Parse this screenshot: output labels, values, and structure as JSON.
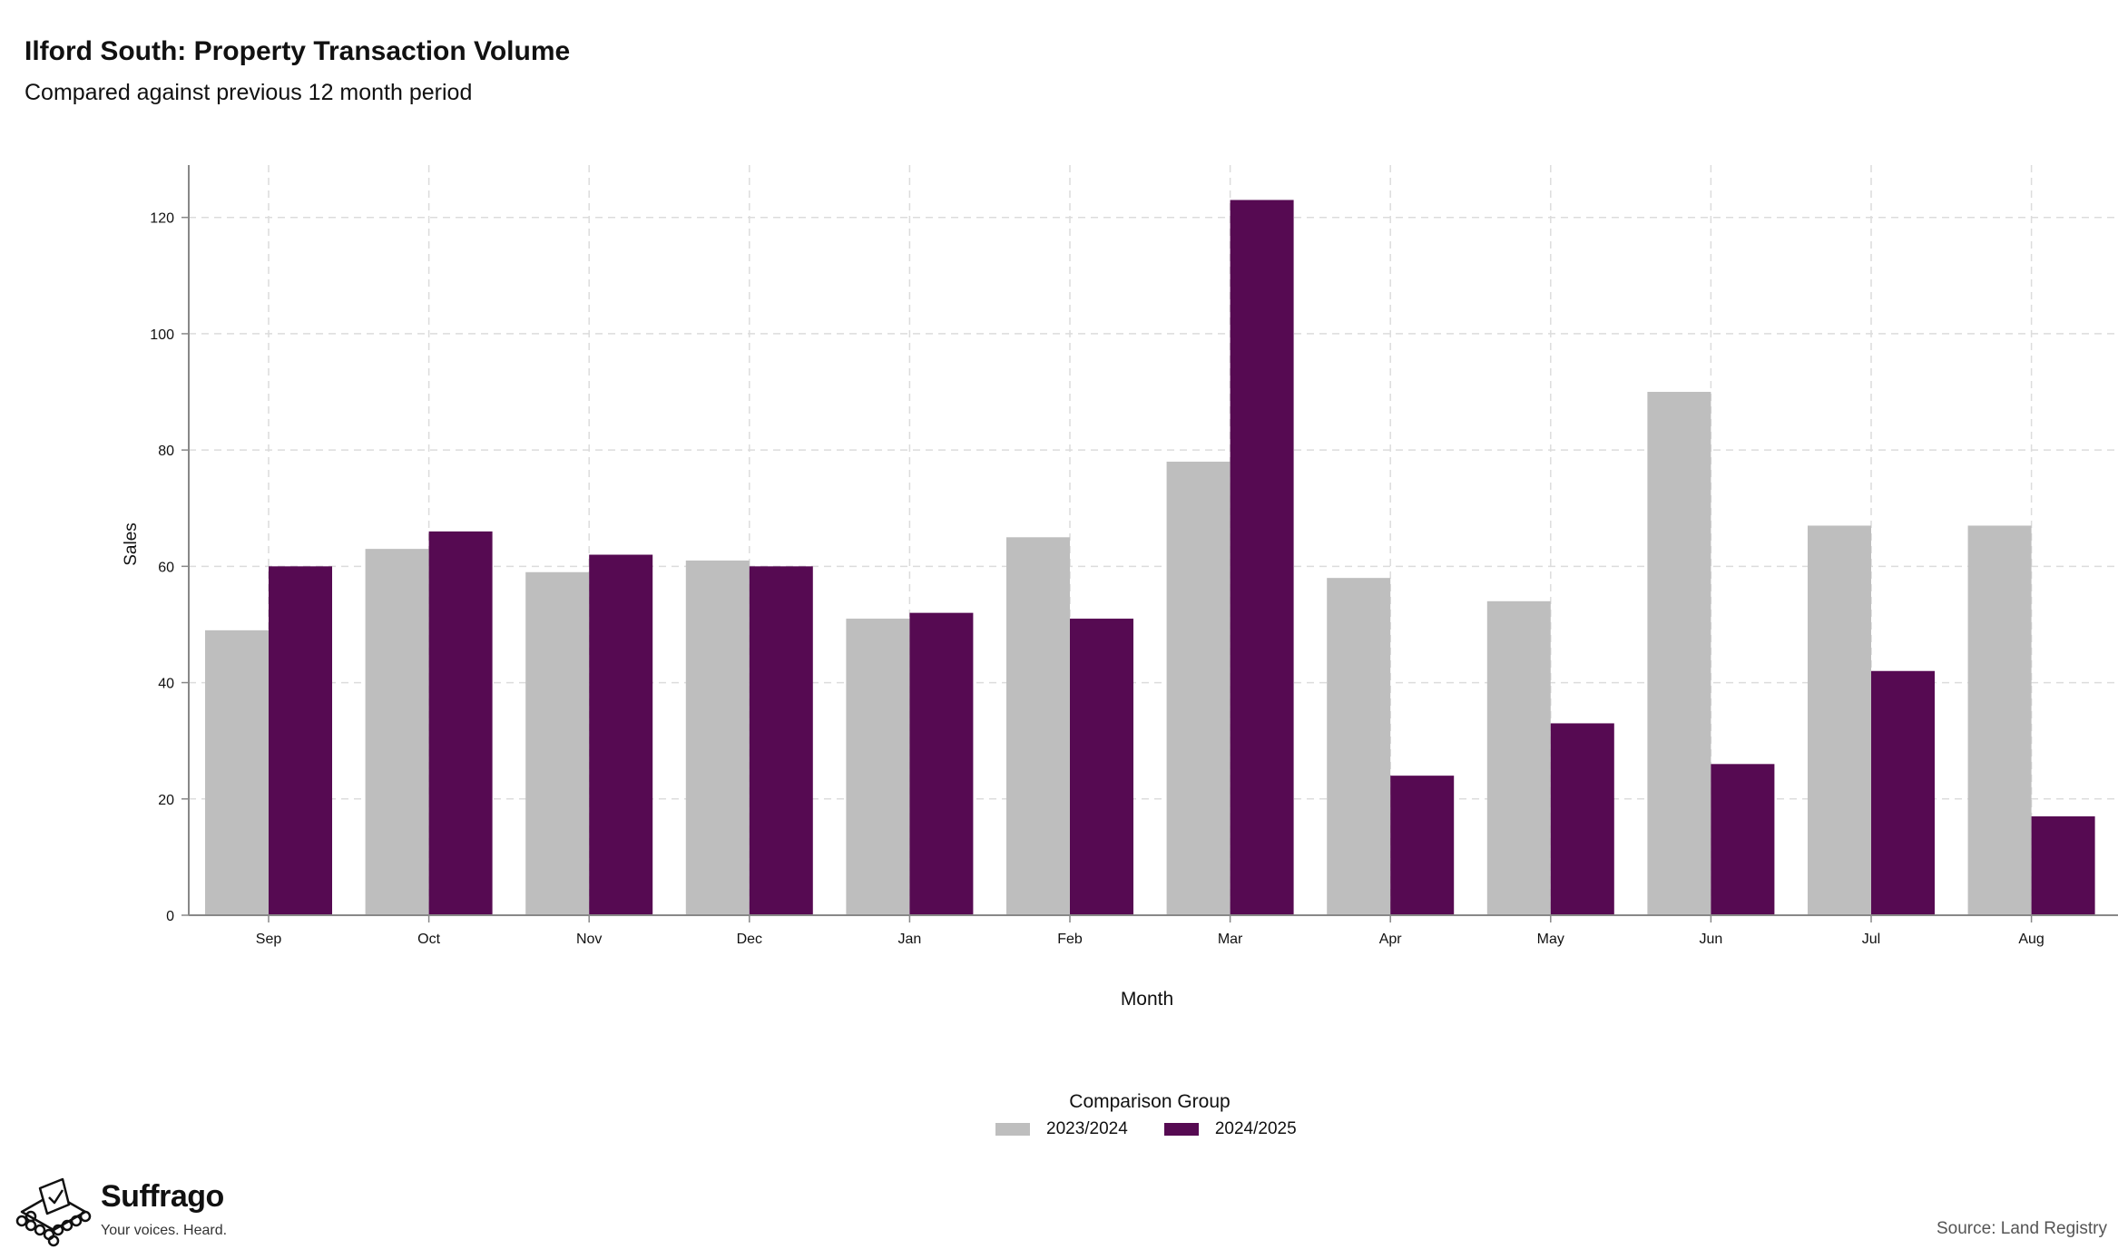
{
  "header": {
    "title": "Ilford South: Property Transaction Volume",
    "subtitle": "Compared against previous 12 month period"
  },
  "legend": {
    "title": "Comparison Group",
    "position": "bottom-center"
  },
  "footer": {
    "brand": "Suffrago",
    "tagline": "Your voices. Heard.",
    "source": "Source: Land Registry"
  },
  "chart_data": {
    "type": "bar",
    "categories": [
      "Sep",
      "Oct",
      "Nov",
      "Dec",
      "Jan",
      "Feb",
      "Mar",
      "Apr",
      "May",
      "Jun",
      "Jul",
      "Aug"
    ],
    "series": [
      {
        "name": "2023/2024",
        "color": "#bebebe",
        "values": [
          49,
          63,
          59,
          61,
          51,
          65,
          78,
          58,
          54,
          90,
          67,
          67
        ]
      },
      {
        "name": "2024/2025",
        "color": "#560a52",
        "values": [
          60,
          66,
          62,
          60,
          52,
          51,
          123,
          24,
          33,
          26,
          42,
          17
        ]
      }
    ],
    "xlabel": "Month",
    "ylabel": "Sales",
    "ylim": [
      0,
      129
    ],
    "yticks": [
      0,
      20,
      40,
      60,
      80,
      100,
      120
    ],
    "grid": true,
    "legend": "bottom"
  }
}
